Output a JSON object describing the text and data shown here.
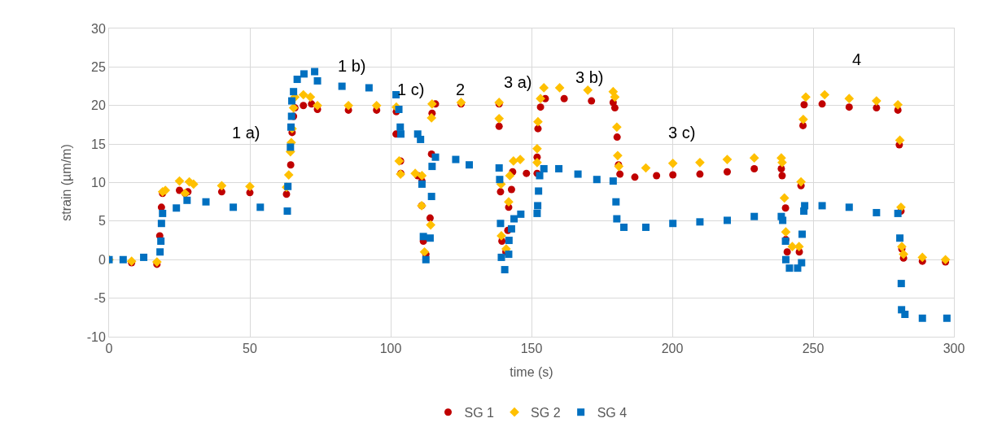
{
  "chart_data": {
    "type": "scatter",
    "xlabel": "time (s)",
    "ylabel": "strain (µm/m)",
    "xlim": [
      0,
      300
    ],
    "xticks": [
      0,
      50,
      100,
      150,
      200,
      250,
      300
    ],
    "ylim": [
      -10,
      30
    ],
    "yticks": [
      -10,
      -5,
      0,
      5,
      10,
      15,
      20,
      25,
      30
    ],
    "grid": true,
    "legend": "bottom",
    "annotations": [
      "1 a)",
      "1 b)",
      "1 c)",
      "2",
      "3 a)",
      "3 b)",
      "3 c)",
      "4"
    ],
    "series": [
      {
        "name": "SG 1",
        "color": "#c00000",
        "marker": "circle",
        "x": [
          8,
          17,
          18,
          18.6,
          19,
          25,
          27,
          28,
          40,
          50,
          63,
          64.5,
          65,
          65.5,
          66,
          69,
          71.9,
          74,
          85,
          95,
          102,
          101.9,
          103.5,
          103.6,
          109.6,
          111.1,
          111,
          111.6,
          112.5,
          114,
          114.5,
          114.7,
          115.9,
          125,
          138.5,
          138.5,
          139,
          139.5,
          140.9,
          141.6,
          141.9,
          142.9,
          143.3,
          148.2,
          152,
          152,
          152.3,
          153.2,
          154.9,
          161.6,
          171.3,
          179,
          179.6,
          180.4,
          180.9,
          181.4,
          186.7,
          194.4,
          200.2,
          209.8,
          219.5,
          229.1,
          238.7,
          239,
          240.2,
          240.3,
          240.8,
          245.1,
          245.7,
          246.4,
          246.8,
          253.2,
          262.8,
          272.5,
          280.1,
          280.6,
          281.2,
          281.5,
          282.1,
          288.8,
          297
        ],
        "values": [
          -0.4,
          -0.6,
          3.1,
          6.8,
          8.6,
          9.0,
          8.6,
          8.8,
          8.8,
          8.7,
          8.5,
          12.3,
          16.5,
          18.6,
          19.7,
          20.0,
          20.2,
          19.5,
          19.4,
          19.4,
          19.2,
          16.3,
          12.8,
          11.2,
          10.9,
          10.2,
          7.0,
          2.4,
          0.7,
          5.4,
          13.7,
          19.0,
          20.2,
          20.2,
          20.2,
          17.3,
          8.8,
          2.4,
          1.0,
          3.8,
          6.8,
          9.1,
          11.4,
          11.2,
          11.2,
          13.3,
          17.0,
          19.8,
          20.9,
          20.9,
          20.6,
          20.4,
          19.7,
          15.9,
          12.3,
          11.1,
          10.7,
          10.9,
          11.0,
          11.1,
          11.4,
          11.8,
          11.8,
          10.9,
          6.7,
          2.6,
          1.0,
          1.0,
          9.6,
          17.4,
          20.1,
          20.2,
          19.8,
          19.7,
          19.4,
          14.9,
          6.3,
          1.4,
          0.2,
          -0.2,
          -0.3
        ]
      },
      {
        "name": "SG 2",
        "color": "#ffc000",
        "marker": "diamond",
        "x": [
          0,
          8,
          17,
          18.5,
          19,
          20,
          25,
          27,
          28.5,
          30,
          40,
          50,
          63,
          63.8,
          64.4,
          64.7,
          65,
          65.5,
          66,
          69,
          71.5,
          74,
          85,
          95,
          102,
          103,
          103.5,
          108.7,
          111.1,
          111,
          112,
          114.2,
          114.5,
          114.7,
          125,
          138.5,
          138.5,
          139.2,
          139.3,
          141,
          141.9,
          142.3,
          143.6,
          146,
          152,
          152,
          152.3,
          153.2,
          154.4,
          160,
          170,
          179,
          179.6,
          180.3,
          180.6,
          181,
          190.6,
          200.2,
          209.8,
          219.5,
          229.1,
          238.7,
          239,
          239.8,
          240.3,
          242.6,
          245,
          245.7,
          246.5,
          247.4,
          254.1,
          262.8,
          272.5,
          280.1,
          280.8,
          281.2,
          281.5,
          282.1,
          288.8,
          297
        ],
        "values": [
          0,
          -0.2,
          -0.3,
          null,
          8.8,
          9.0,
          10.2,
          8.6,
          10.1,
          9.8,
          9.6,
          9.5,
          9.4,
          11.0,
          14.0,
          15.2,
          17.0,
          19.7,
          21.1,
          21.4,
          21.1,
          20.0,
          20.0,
          20.0,
          19.8,
          12.8,
          11.1,
          11.2,
          10.9,
          7.0,
          1.0,
          4.5,
          18.4,
          20.2,
          20.4,
          20.4,
          18.3,
          9.8,
          3.1,
          1.4,
          7.5,
          10.9,
          12.8,
          13.0,
          12.6,
          14.4,
          17.9,
          20.9,
          22.3,
          22.3,
          22.0,
          21.8,
          21.1,
          17.2,
          13.5,
          12.1,
          11.9,
          12.5,
          12.6,
          13.0,
          13.2,
          13.2,
          12.6,
          8.0,
          3.6,
          1.7,
          1.7,
          10.1,
          18.2,
          21.1,
          21.4,
          20.9,
          20.6,
          20.1,
          15.5,
          6.8,
          1.7,
          0.7,
          0.3,
          0.0
        ]
      },
      {
        "name": "SG 4",
        "color": "#0070c0",
        "marker": "square",
        "x": [
          0,
          5,
          12.3,
          18.1,
          18.4,
          18.6,
          19,
          23.9,
          27.7,
          34.4,
          44.1,
          53.7,
          63.3,
          63.5,
          64.4,
          64.6,
          64.8,
          64.9,
          65.5,
          66.8,
          69.2,
          73,
          74,
          82.7,
          92.3,
          101.9,
          102.9,
          103.4,
          103.6,
          109.6,
          110.6,
          111.1,
          111.6,
          112.5,
          114,
          114.5,
          114.7,
          115.9,
          123.1,
          127.9,
          138.5,
          138.7,
          139,
          139.3,
          140.5,
          141.9,
          142,
          142.9,
          143.8,
          146.2,
          152,
          152.2,
          152.5,
          152.9,
          154.4,
          159.7,
          166.5,
          173.2,
          179,
          180,
          180.3,
          182.8,
          190.6,
          200.2,
          209.8,
          219.5,
          229.1,
          238.7,
          239.2,
          240.2,
          240.3,
          241.6,
          244.5,
          245.9,
          246.1,
          246.7,
          247,
          253.2,
          262.8,
          272.5,
          280.1,
          280.8,
          281.3,
          281.4,
          282.6,
          288.8,
          297.5
        ],
        "values": [
          0,
          0,
          0.3,
          1.0,
          2.4,
          4.7,
          6.0,
          6.7,
          7.7,
          7.5,
          6.8,
          6.8,
          6.3,
          9.5,
          14.6,
          17.2,
          18.6,
          20.6,
          21.8,
          23.4,
          24.1,
          24.4,
          23.2,
          22.5,
          22.3,
          21.4,
          19.5,
          17.2,
          16.3,
          16.3,
          15.6,
          9.8,
          3.0,
          0,
          2.8,
          8.2,
          12.1,
          13.3,
          13.0,
          12.3,
          11.9,
          10.4,
          4.7,
          0.3,
          -1.3,
          0.7,
          2.5,
          4.0,
          5.3,
          5.9,
          6.0,
          7.0,
          8.9,
          10.9,
          11.8,
          11.8,
          11.1,
          10.4,
          10.2,
          7.5,
          5.3,
          4.2,
          4.2,
          4.7,
          4.9,
          5.1,
          5.6,
          5.6,
          5.1,
          2.4,
          0,
          -1.1,
          -1.1,
          -0.4,
          3.3,
          6.3,
          7.0,
          7.0,
          6.8,
          6.1,
          6.0,
          2.8,
          -3.1,
          -6.5,
          -7.1,
          -7.6,
          -7.6
        ]
      }
    ]
  }
}
